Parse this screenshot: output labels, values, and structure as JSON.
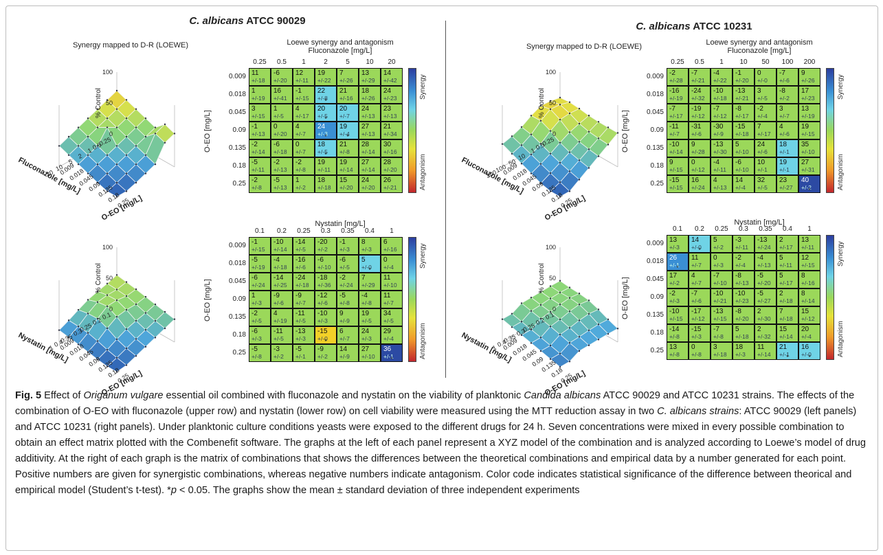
{
  "figure": {
    "left_title_italic": "C. albicans",
    "left_title_rest": " ATCC 90029",
    "right_title_italic": "C. albicans",
    "right_title_rest": " ATCC 10231"
  },
  "labels": {
    "surface_title": "Synergy mapped to D-R (LOEWE)",
    "matrix_title": "Loewe synergy and antagonism",
    "z_axis": "% Control",
    "oeo_axis": "O-EO [mg/L]",
    "flu_axis": "Fluconazole [mg/L]",
    "nys_axis": "Nystatin [mg/L]",
    "synergy": "Synergy",
    "antagonism": "Antagonism",
    "z_ticks": [
      "100",
      "50",
      "0"
    ]
  },
  "axes": {
    "oeo": [
      "0.009",
      "0.018",
      "0.045",
      "0.09",
      "0.135",
      "0.18",
      "0.25"
    ],
    "flu_a": [
      "0.25",
      "0.5",
      "1",
      "2",
      "5",
      "10",
      "20"
    ],
    "flu_b": [
      "0.25",
      "0.5",
      "1",
      "10",
      "50",
      "100",
      "200"
    ],
    "nys": [
      "0.1",
      "0.2",
      "0.25",
      "0.3",
      "0.35",
      "0.4",
      "1"
    ]
  },
  "colors": {
    "green": "#9bd85a",
    "light_blue": "#6fd3e6",
    "mid_blue": "#3a8fd4",
    "dark_blue": "#2c4aa3",
    "yellow": "#f2d028"
  },
  "matrices": [
    {
      "id": "flu_90029",
      "cells": [
        [
          [
            "11",
            "+/-18"
          ],
          [
            "-6",
            "+/-20"
          ],
          [
            "12",
            "+/-11"
          ],
          [
            "19",
            "+/-22"
          ],
          [
            "7",
            "+/-26"
          ],
          [
            "13",
            "+/-29"
          ],
          [
            "14",
            "+/-42"
          ]
        ],
        [
          [
            "1",
            "+/-19"
          ],
          [
            "16",
            "+/-41"
          ],
          [
            "-1",
            "+/-15"
          ],
          [
            "22",
            "+/-8"
          ],
          [
            "21",
            "+/-16"
          ],
          [
            "18",
            "+/-26"
          ],
          [
            "24",
            "+/-23"
          ]
        ],
        [
          [
            "3",
            "+/-15"
          ],
          [
            "1",
            "+/-5"
          ],
          [
            "4",
            "+/-17"
          ],
          [
            "20",
            "+/-5"
          ],
          [
            "20",
            "+/-7"
          ],
          [
            "24",
            "+/-13"
          ],
          [
            "23",
            "+/-13"
          ]
        ],
        [
          [
            "-1",
            "+/-13"
          ],
          [
            "0",
            "+/-20"
          ],
          [
            "4",
            "+/-7"
          ],
          [
            "24",
            "+/-3"
          ],
          [
            "19",
            "+/-4"
          ],
          [
            "27",
            "+/-13"
          ],
          [
            "21",
            "+/-34"
          ]
        ],
        [
          [
            "-2",
            "+/-14"
          ],
          [
            "-6",
            "+/-18"
          ],
          [
            "0",
            "+/-7"
          ],
          [
            "18",
            "+/-5"
          ],
          [
            "21",
            "+/-8"
          ],
          [
            "28",
            "+/-14"
          ],
          [
            "30",
            "+/-16"
          ]
        ],
        [
          [
            "-5",
            "+/-11"
          ],
          [
            "-2",
            "+/-13"
          ],
          [
            "-2",
            "+/-8"
          ],
          [
            "19",
            "+/-11"
          ],
          [
            "19",
            "+/-14"
          ],
          [
            "27",
            "+/-14"
          ],
          [
            "28",
            "+/-20"
          ]
        ],
        [
          [
            "-2",
            "+/-8"
          ],
          [
            "-5",
            "+/-13"
          ],
          [
            "1",
            "+/-2"
          ],
          [
            "18",
            "+/-18"
          ],
          [
            "15",
            "+/-20"
          ],
          [
            "24",
            "+/-20"
          ],
          [
            "26",
            "+/-21"
          ]
        ]
      ],
      "blue": [
        [
          1,
          3,
          "l"
        ],
        [
          2,
          3,
          "l"
        ],
        [
          2,
          4,
          "l"
        ],
        [
          3,
          3,
          "m"
        ],
        [
          3,
          4,
          "l"
        ],
        [
          4,
          3,
          "l"
        ]
      ],
      "stars": [
        [
          1,
          3
        ],
        [
          2,
          3
        ],
        [
          3,
          3
        ],
        [
          3,
          4
        ],
        [
          4,
          3
        ]
      ]
    },
    {
      "id": "flu_10231",
      "cells": [
        [
          [
            "-2",
            "+/-28"
          ],
          [
            "-7",
            "+/-21"
          ],
          [
            "-4",
            "+/-22"
          ],
          [
            "-1",
            "+/-20"
          ],
          [
            "0",
            "+/-0"
          ],
          [
            "-7",
            "+/-6"
          ],
          [
            "9",
            "+/-26"
          ]
        ],
        [
          [
            "-16",
            "+/-19"
          ],
          [
            "-24",
            "+/-32"
          ],
          [
            "-10",
            "+/-18"
          ],
          [
            "-13",
            "+/-21"
          ],
          [
            "3",
            "+/-5"
          ],
          [
            "-8",
            "+/-2"
          ],
          [
            "17",
            "+/-23"
          ]
        ],
        [
          [
            "-7",
            "+/-17"
          ],
          [
            "-19",
            "+/-12"
          ],
          [
            "-7",
            "+/-12"
          ],
          [
            "-8",
            "+/-17"
          ],
          [
            "-2",
            "+/-4"
          ],
          [
            "3",
            "+/-7"
          ],
          [
            "13",
            "+/-19"
          ]
        ],
        [
          [
            "-11",
            "+/-7"
          ],
          [
            "-31",
            "+/-6"
          ],
          [
            "-30",
            "+/-9"
          ],
          [
            "-15",
            "+/-18"
          ],
          [
            "7",
            "+/-17"
          ],
          [
            "4",
            "+/-6"
          ],
          [
            "19",
            "+/-15"
          ]
        ],
        [
          [
            "-10",
            "+/-14"
          ],
          [
            "9",
            "+/-28"
          ],
          [
            "-13",
            "+/-30"
          ],
          [
            "5",
            "+/-10"
          ],
          [
            "24",
            "+/-6"
          ],
          [
            "18",
            "+/-1"
          ],
          [
            "35",
            "+/-10"
          ]
        ],
        [
          [
            "9",
            "+/-15"
          ],
          [
            "0",
            "+/-12"
          ],
          [
            "-4",
            "+/-11"
          ],
          [
            "-6",
            "+/-10"
          ],
          [
            "10",
            "+/-1"
          ],
          [
            "19",
            "+/-1"
          ],
          [
            "27",
            "+/-31"
          ]
        ],
        [
          [
            "-15",
            "+/-15"
          ],
          [
            "16",
            "+/-24"
          ],
          [
            "4",
            "+/-13"
          ],
          [
            "14",
            "+/-4"
          ],
          [
            "32",
            "+/-5"
          ],
          [
            "23",
            "+/-27"
          ],
          [
            "40",
            "+/-2"
          ]
        ]
      ],
      "blue": [
        [
          4,
          5,
          "l"
        ],
        [
          5,
          5,
          "l"
        ],
        [
          6,
          6,
          "d"
        ]
      ],
      "stars": [
        [
          6,
          6
        ]
      ]
    },
    {
      "id": "nys_90029",
      "cells": [
        [
          [
            "-1",
            "+/-15"
          ],
          [
            "-10",
            "+/-14"
          ],
          [
            "-14",
            "+/-5"
          ],
          [
            "-20",
            "+/-2"
          ],
          [
            "-1",
            "+/-3"
          ],
          [
            "8",
            "+/-3"
          ],
          [
            "6",
            "+/-16"
          ]
        ],
        [
          [
            "-5",
            "+/-19"
          ],
          [
            "-4",
            "+/-18"
          ],
          [
            "-16",
            "+/-6"
          ],
          [
            "-6",
            "+/-10"
          ],
          [
            "-6",
            "+/-5"
          ],
          [
            "5",
            "+/-0"
          ],
          [
            "0",
            "+/-4"
          ]
        ],
        [
          [
            "-6",
            "+/-24"
          ],
          [
            "-14",
            "+/-25"
          ],
          [
            "-24",
            "+/-18"
          ],
          [
            "-18",
            "+/-36"
          ],
          [
            "-2",
            "+/-24"
          ],
          [
            "7",
            "+/-29"
          ],
          [
            "11",
            "+/-10"
          ]
        ],
        [
          [
            "1",
            "+/-3"
          ],
          [
            "-9",
            "+/-6"
          ],
          [
            "-9",
            "+/-7"
          ],
          [
            "-12",
            "+/-6"
          ],
          [
            "-5",
            "+/-8"
          ],
          [
            "-4",
            "+/-8"
          ],
          [
            "11",
            "+/-7"
          ]
        ],
        [
          [
            "-2",
            "+/-5"
          ],
          [
            "4",
            "+/-19"
          ],
          [
            "-11",
            "+/-5"
          ],
          [
            "-10",
            "+/-3"
          ],
          [
            "9",
            "+/-9"
          ],
          [
            "19",
            "+/-5"
          ],
          [
            "34",
            "+/-5"
          ]
        ],
        [
          [
            "-6",
            "+/-3"
          ],
          [
            "-11",
            "+/-5"
          ],
          [
            "-13",
            "+/-3"
          ],
          [
            "-15",
            "+/-0"
          ],
          [
            "6",
            "+/-7"
          ],
          [
            "24",
            "+/-3"
          ],
          [
            "29",
            "+/-4"
          ]
        ],
        [
          [
            "-5",
            "+/-8"
          ],
          [
            "-3",
            "+/-2"
          ],
          [
            "-5",
            "+/-1"
          ],
          [
            "-9",
            "+/-2"
          ],
          [
            "14",
            "+/-9"
          ],
          [
            "27",
            "+/-10"
          ],
          [
            "36",
            "+/-1"
          ]
        ]
      ],
      "blue": [
        [
          1,
          5,
          "l"
        ],
        [
          5,
          3,
          "y"
        ],
        [
          6,
          6,
          "d"
        ]
      ],
      "stars": [
        [
          1,
          5
        ],
        [
          5,
          3
        ],
        [
          6,
          6
        ]
      ]
    },
    {
      "id": "nys_10231",
      "cells": [
        [
          [
            "13",
            "+/-3"
          ],
          [
            "14",
            "+/-0"
          ],
          [
            "5",
            "+/-2"
          ],
          [
            "-3",
            "+/-11"
          ],
          [
            "-13",
            "+/-24"
          ],
          [
            "2",
            "+/-17"
          ],
          [
            "13",
            "+/-11"
          ]
        ],
        [
          [
            "26",
            "+/-1"
          ],
          [
            "11",
            "+/-7"
          ],
          [
            "0",
            "+/-3"
          ],
          [
            "-2",
            "+/-4"
          ],
          [
            "-4",
            "+/-13"
          ],
          [
            "5",
            "+/-11"
          ],
          [
            "12",
            "+/-15"
          ]
        ],
        [
          [
            "17",
            "+/-2"
          ],
          [
            "4",
            "+/-7"
          ],
          [
            "-7",
            "+/-10"
          ],
          [
            "-8",
            "+/-13"
          ],
          [
            "-5",
            "+/-20"
          ],
          [
            "5",
            "+/-17"
          ],
          [
            "8",
            "+/-16"
          ]
        ],
        [
          [
            "-2",
            "+/-3"
          ],
          [
            "-7",
            "+/-6"
          ],
          [
            "-10",
            "+/-21"
          ],
          [
            "-10",
            "+/-23"
          ],
          [
            "-5",
            "+/-27"
          ],
          [
            "2",
            "+/-18"
          ],
          [
            "8",
            "+/-14"
          ]
        ],
        [
          [
            "-10",
            "+/-15"
          ],
          [
            "-17",
            "+/-12"
          ],
          [
            "-13",
            "+/-15"
          ],
          [
            "-8",
            "+/-20"
          ],
          [
            "2",
            "+/-30"
          ],
          [
            "7",
            "+/-18"
          ],
          [
            "15",
            "+/-12"
          ]
        ],
        [
          [
            "-14",
            "+/-8"
          ],
          [
            "-15",
            "+/-3"
          ],
          [
            "-7",
            "+/-8"
          ],
          [
            "5",
            "+/-18"
          ],
          [
            "2",
            "+/-32"
          ],
          [
            "15",
            "+/-14"
          ],
          [
            "20",
            "+/-4"
          ]
        ],
        [
          [
            "13",
            "+/-8"
          ],
          [
            "0",
            "+/-8"
          ],
          [
            "3",
            "+/-18"
          ],
          [
            "18",
            "+/-3"
          ],
          [
            "11",
            "+/-14"
          ],
          [
            "21",
            "+/-1"
          ],
          [
            "16",
            "+/-0"
          ]
        ]
      ],
      "blue": [
        [
          0,
          1,
          "l"
        ],
        [
          1,
          0,
          "m"
        ],
        [
          6,
          5,
          "l"
        ],
        [
          6,
          6,
          "l"
        ]
      ],
      "stars": [
        [
          0,
          1
        ],
        [
          1,
          0
        ],
        [
          6,
          5
        ],
        [
          6,
          6
        ]
      ]
    }
  ],
  "caption": {
    "fig_label": "Fig. 5",
    "p1": "  Effect of ",
    "i1": "Origanum vulgare",
    "p2": " essential oil combined with fluconazole and nystatin on the viability of planktonic ",
    "i2": "Candida albicans",
    "p3": " ATCC 90029 and ATCC 10231 strains. The effects of the combination of O-EO with fluconazole (upper row) and nystatin (lower row) on cell viability were measured using the MTT reduction assay in two ",
    "i3": "C. albicans strains",
    "p4": ": ATCC 90029 (left panels) and ATCC 10231 (right panels). Under planktonic culture conditions yeasts were exposed to the different drugs for 24 h. Seven concentrations were mixed in every possible combination to obtain an effect matrix plotted with the Combenefit software. The graphs at the left of each panel represent a XYZ model of the combination and is analyzed according to Loewe’s model of drug additivity. At the right of each graph is the matrix of combinations that shows the differences between the theoretical combinations and empirical data by a number generated for each point. Positive numbers are given for synergistic combinations, whereas negative numbers indicate antagonism. Color code indicates statistical significance of the difference between theorical and empirical model (Student’s t-test). *",
    "i4": "p",
    "p5": " < 0.05. The graphs show the mean ± standard deviation of three independent experiments"
  }
}
